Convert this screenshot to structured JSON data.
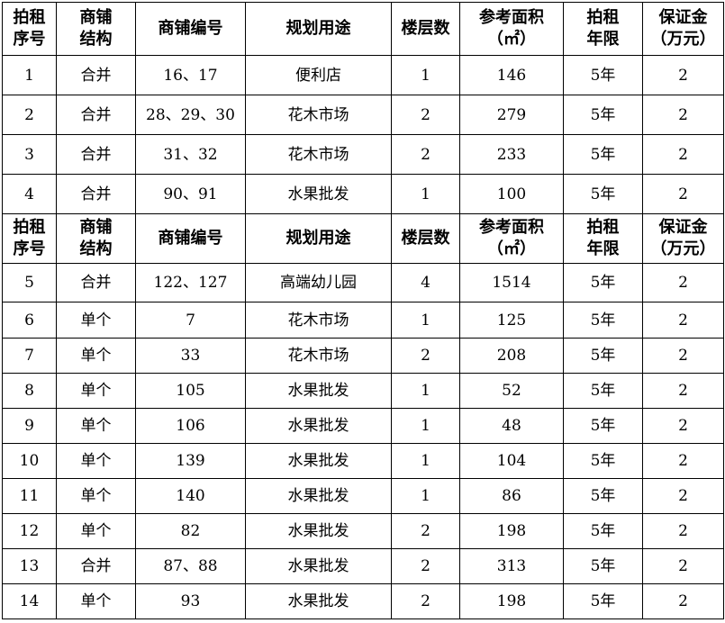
{
  "headers": [
    "拍租\n序号",
    "商铺\n结构",
    "商铺编号",
    "规划用途",
    "楼层数",
    "参考面积\n（㎡）",
    "拍租\n年限",
    "保证金\n（万元）"
  ],
  "group1": [
    [
      "1",
      "合并",
      "16、17",
      "便利店",
      "1",
      "146",
      "5年",
      "2"
    ],
    [
      "2",
      "合并",
      "28、29、30",
      "花木市场",
      "2",
      "279",
      "5年",
      "2"
    ],
    [
      "3",
      "合并",
      "31、32",
      "花木市场",
      "2",
      "233",
      "5年",
      "2"
    ],
    [
      "4",
      "合并",
      "90、91",
      "水果批发",
      "1",
      "100",
      "5年",
      "2"
    ]
  ],
  "group2": [
    [
      "5",
      "合并",
      "122、127",
      "高端幼儿园",
      "4",
      "1514",
      "5年",
      "2"
    ],
    [
      "6",
      "单个",
      "7",
      "花木市场",
      "1",
      "125",
      "5年",
      "2"
    ],
    [
      "7",
      "单个",
      "33",
      "花木市场",
      "2",
      "208",
      "5年",
      "2"
    ],
    [
      "8",
      "单个",
      "105",
      "水果批发",
      "1",
      "52",
      "5年",
      "2"
    ],
    [
      "9",
      "单个",
      "106",
      "水果批发",
      "1",
      "48",
      "5年",
      "2"
    ],
    [
      "10",
      "单个",
      "139",
      "水果批发",
      "1",
      "104",
      "5年",
      "2"
    ],
    [
      "11",
      "单个",
      "140",
      "水果批发",
      "1",
      "86",
      "5年",
      "2"
    ],
    [
      "12",
      "单个",
      "82",
      "水果批发",
      "2",
      "198",
      "5年",
      "2"
    ],
    [
      "13",
      "合并",
      "87、88",
      "水果批发",
      "2",
      "313",
      "5年",
      "2"
    ],
    [
      "14",
      "单个",
      "93",
      "水果批发",
      "2",
      "198",
      "5年",
      "2"
    ]
  ]
}
